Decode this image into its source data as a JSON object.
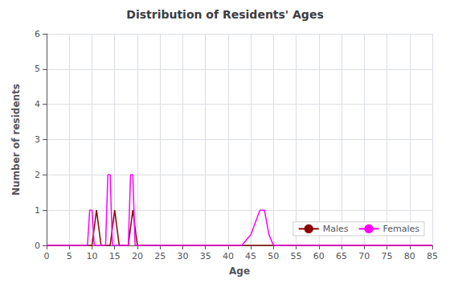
{
  "chart_data": {
    "type": "line",
    "title": "Distribution of Residents' Ages",
    "xlabel": "Age",
    "ylabel": "Number of residents",
    "xlim": [
      0,
      85
    ],
    "ylim": [
      0,
      6
    ],
    "xticks": [
      0,
      5,
      10,
      15,
      20,
      25,
      30,
      35,
      40,
      45,
      50,
      55,
      60,
      65,
      70,
      75,
      80,
      85
    ],
    "yticks": [
      0,
      1,
      2,
      3,
      4,
      5,
      6
    ],
    "grid": true,
    "legend": "lower right",
    "series": [
      {
        "name": "Males",
        "color": "#8B0000",
        "x": [
          0,
          8,
          9,
          10,
          10.5,
          11,
          11.5,
          12,
          14,
          14.5,
          15,
          15.5,
          16,
          17,
          18,
          18.5,
          19,
          19.5,
          20,
          85
        ],
        "values": [
          0,
          0,
          0,
          0,
          0.5,
          1,
          0.5,
          0,
          0,
          0.5,
          1,
          0.5,
          0,
          0,
          0,
          0.5,
          1,
          0.5,
          0,
          0
        ]
      },
      {
        "name": "Females",
        "color": "#FF00FF",
        "x": [
          0,
          8,
          9,
          9.5,
          10,
          10.5,
          11,
          13,
          13.5,
          14,
          14.5,
          15,
          18,
          18.5,
          19,
          19.5,
          20,
          40,
          43,
          45,
          47,
          48,
          49,
          50,
          52,
          85
        ],
        "values": [
          0,
          0,
          0,
          1,
          1,
          0,
          0,
          0,
          2,
          2,
          0,
          0,
          0,
          2,
          2,
          0,
          0,
          0,
          0,
          0.3,
          1,
          1,
          0.3,
          0,
          0,
          0
        ]
      }
    ]
  }
}
